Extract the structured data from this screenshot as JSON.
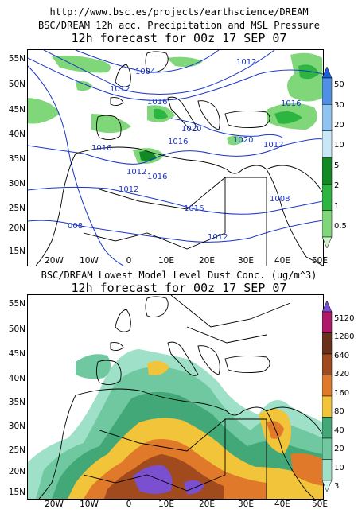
{
  "url": "http://www.bsc.es/projects/earthscience/DREAM",
  "panels": [
    {
      "title1": "BSC/DREAM 12h acc. Precipitation and MSL Pressure",
      "title2": "12h forecast for 00z 17 SEP 07",
      "lat_labels": [
        "55N",
        "50N",
        "45N",
        "40N",
        "35N",
        "30N",
        "25N",
        "20N",
        "15N"
      ],
      "lon_labels": [
        "20W",
        "10W",
        "0",
        "10E",
        "20E",
        "30E",
        "40E",
        "50E"
      ],
      "isobar_labels": [
        "1012",
        "1004",
        "1012",
        "1016",
        "1016",
        "1020",
        "1020",
        "1012",
        "1016",
        "1016",
        "1012",
        "1016",
        "008",
        "1012",
        "1008",
        "1012",
        "1016"
      ],
      "colorbar_labels": [
        "50",
        "30",
        "20",
        "10",
        "5",
        "2",
        "1",
        "0.5"
      ],
      "colorbar_colors": [
        "#1a5fd8",
        "#4f8fe6",
        "#90c4f0",
        "#c8e8f8",
        "#128a24",
        "#2db541",
        "#7fd77a",
        "#cff2c6"
      ]
    },
    {
      "title1": "BSC/DREAM Lowest Model Level Dust Conc. (ug/m^3)",
      "title2": "12h forecast for 00z 17 SEP 07",
      "lat_labels": [
        "55N",
        "50N",
        "45N",
        "40N",
        "35N",
        "30N",
        "25N",
        "20N",
        "15N"
      ],
      "lon_labels": [
        "20W",
        "10W",
        "0",
        "10E",
        "20E",
        "30E",
        "40E",
        "50E"
      ],
      "colorbar_labels": [
        "5120",
        "1280",
        "640",
        "320",
        "160",
        "80",
        "40",
        "20",
        "10",
        "3"
      ],
      "colorbar_colors": [
        "#7a4fd0",
        "#b0186a",
        "#6b3018",
        "#a04a1e",
        "#e07a2a",
        "#f2c43a",
        "#42a878",
        "#6fc8a0",
        "#9fe0c8",
        "#d6f8f0"
      ]
    }
  ]
}
